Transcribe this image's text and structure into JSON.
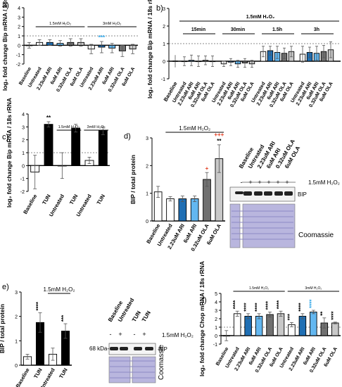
{
  "colors": {
    "untreated": "#ffffff",
    "ari": "#1f6fb4",
    "ari6": "#63b7f0",
    "ola032": "#707070",
    "ola6": "#c8c8c8",
    "sig_black": "#000000",
    "sig_blue": "#2aa3e6",
    "sig_red": "#e23b1f",
    "gel_band": "#222222",
    "coomassie": "#b9b6de"
  },
  "chart_data": [
    {
      "panel": "a)",
      "type": "bar",
      "ylabel": "log2 fold change Bip mRNA / 18s rRNA",
      "ylim": [
        -2,
        4
      ],
      "yticks": [
        -2,
        -1,
        0,
        1,
        2,
        3,
        4
      ],
      "reference_line": 1,
      "categories": [
        "Baseline",
        "Untreated",
        "2.23uM ARI",
        "6uM ARI",
        "0.32uM OLA",
        "6uM OLA",
        "Untreated",
        "2.23uM ARI",
        "6uM ARI",
        "0.32uM OLA",
        "6uM OLA"
      ],
      "values": [
        0.0,
        0.3,
        0.3,
        0.2,
        0.3,
        0.3,
        -0.4,
        -0.2,
        -0.3,
        -0.6,
        -0.4
      ],
      "errors": [
        0.3,
        0.3,
        0.3,
        0.3,
        0.4,
        0.4,
        0.5,
        0.6,
        0.5,
        0.6,
        0.5
      ],
      "colorkeys": [
        "untreated",
        "untreated",
        "ari",
        "ari6",
        "ola032",
        "ola6",
        "untreated",
        "ari",
        "ari6",
        "ola032",
        "ola6"
      ],
      "groups": [
        {
          "label": "1.5mM H2O2",
          "from": 1,
          "to": 5
        },
        {
          "label": "3mM H2O2",
          "from": 6,
          "to": 10
        }
      ],
      "sig": [
        {
          "index": 7,
          "text": "***",
          "color": "sig_blue"
        }
      ]
    },
    {
      "panel": "b)",
      "type": "bar",
      "ylabel": "log2 fold change Bip mRNA / 18s rRNA",
      "ylim": [
        -1,
        3
      ],
      "yticks": [
        -1,
        0,
        1,
        2,
        3
      ],
      "reference_line": 1,
      "title": "1.5mM H2O2",
      "categories": [
        "Baseline",
        "Untreated",
        "2.23uM ARI",
        "6uM ARI",
        "0.32uM OLA",
        "6uM OLA"
      ],
      "timepoints": [
        {
          "label": "15min",
          "values": [
            0.0,
            0.05,
            0.0,
            0.05,
            0.0
          ],
          "errors": [
            0.25,
            0.3,
            0.3,
            0.25,
            0.3
          ]
        },
        {
          "label": "30min",
          "values": [
            -0.15,
            -0.05,
            -0.15,
            -0.1,
            -0.15
          ],
          "errors": [
            0.15,
            0.2,
            0.2,
            0.25,
            0.2
          ]
        },
        {
          "label": "1.5h",
          "values": [
            0.55,
            0.6,
            0.5,
            0.45,
            0.55
          ],
          "errors": [
            0.3,
            0.25,
            0.35,
            0.3,
            0.3
          ]
        },
        {
          "label": "3h",
          "values": [
            0.4,
            0.5,
            0.45,
            0.55,
            0.65
          ],
          "errors": [
            0.45,
            0.3,
            0.4,
            0.35,
            0.45
          ]
        }
      ],
      "baseline": {
        "value": 0.0,
        "error": 0.35
      }
    },
    {
      "panel": "c)",
      "type": "bar",
      "ylabel": "log2 fold change Bip mRNA / 18s rRNA",
      "ylim": [
        -2,
        4
      ],
      "yticks": [
        -2,
        -1,
        0,
        1,
        2,
        3,
        4
      ],
      "reference_line": 1,
      "categories": [
        "Baseline",
        "TUN",
        "Untreated",
        "TUN",
        "Untreated",
        "TUN"
      ],
      "values": [
        -0.5,
        3.2,
        0.0,
        2.9,
        0.4,
        2.7
      ],
      "errors": [
        1.3,
        0.2,
        1.0,
        0.3,
        0.25,
        0.3
      ],
      "colorkeys": [
        "untreated",
        "sig_black",
        "untreated",
        "sig_black",
        "untreated",
        "sig_black"
      ],
      "groups": [
        {
          "label": "1.5mM H2O2",
          "from": 2,
          "to": 3
        },
        {
          "label": "3mM H2O2",
          "from": 4,
          "to": 5
        }
      ],
      "sig": [
        {
          "index": 1,
          "text": "**",
          "color": "sig_black"
        }
      ]
    },
    {
      "panel": "d)",
      "type": "bar",
      "ylabel": "BIP / total protein",
      "ylim": [
        0,
        3
      ],
      "yticks": [
        0,
        1,
        2,
        3
      ],
      "categories": [
        "Baseline",
        "Untreated",
        "2.23uM ARI",
        "6uM ARI",
        "0.32uM OLA",
        "6uM OLA"
      ],
      "values": [
        1.05,
        0.8,
        0.8,
        0.8,
        1.5,
        2.25
      ],
      "errors": [
        0.2,
        0.08,
        0.1,
        0.1,
        0.25,
        0.5
      ],
      "colorkeys": [
        "untreated",
        "untreated",
        "ari",
        "ari6",
        "ola032",
        "ola6"
      ],
      "groups": [
        {
          "label": "1.5mM H2O2",
          "from": 1,
          "to": 5
        }
      ],
      "sig": [
        {
          "index": 4,
          "text": "+",
          "color": "sig_red"
        },
        {
          "index": 5,
          "text": "**",
          "color": "sig_black"
        },
        {
          "index": 5,
          "text": "+++",
          "color": "sig_red"
        }
      ]
    },
    {
      "panel": "e)",
      "type": "bar",
      "ylabel": "BIP / total protein",
      "ylim": [
        0,
        3
      ],
      "yticks": [
        0,
        1,
        2,
        3
      ],
      "categories": [
        "Baseline",
        "TUN",
        "Untreated",
        "TUN"
      ],
      "values": [
        0.35,
        1.75,
        0.45,
        1.4
      ],
      "errors": [
        0.1,
        0.4,
        0.25,
        0.3
      ],
      "colorkeys": [
        "untreated",
        "sig_black",
        "untreated",
        "sig_black"
      ],
      "groups": [
        {
          "label": "1.5mM H2O2",
          "from": 2,
          "to": 3
        }
      ],
      "sig": [
        {
          "index": 1,
          "text": "****",
          "color": "sig_black"
        },
        {
          "index": 3,
          "text": "***",
          "color": "sig_black"
        }
      ]
    },
    {
      "panel": "f)",
      "type": "bar",
      "ylabel": "log2 fold change Chop mRNA / 18s rRNA",
      "ylim": [
        -1,
        5
      ],
      "yticks": [
        -1,
        0,
        1,
        2,
        3,
        4,
        5
      ],
      "reference_line": 1,
      "categories": [
        "Baseline",
        "Untreated",
        "2.23uM ARI",
        "6uM ARI",
        "0.32uM OLA",
        "6uM OLA",
        "Untreated",
        "2.23uM ARI",
        "6uM ARI",
        "0.32uM OLA",
        "6uM OLA"
      ],
      "values": [
        0.0,
        2.6,
        2.3,
        2.3,
        2.5,
        2.6,
        1.3,
        2.3,
        2.8,
        1.5,
        1.5
      ],
      "errors": [
        0.6,
        0.3,
        0.3,
        0.3,
        0.3,
        0.3,
        0.25,
        0.3,
        0.2,
        0.6,
        0.1
      ],
      "colorkeys": [
        "untreated",
        "untreated",
        "ari",
        "ari6",
        "ola032",
        "ola6",
        "untreated",
        "ari",
        "ari6",
        "ola032",
        "ola6"
      ],
      "groups": [
        {
          "label": "1.5mM H2O2",
          "from": 1,
          "to": 5
        },
        {
          "label": "3mM H2O2",
          "from": 6,
          "to": 10
        }
      ],
      "sig": [
        {
          "index": 1,
          "text": "****",
          "color": "sig_black"
        },
        {
          "index": 2,
          "text": "****",
          "color": "sig_black"
        },
        {
          "index": 3,
          "text": "****",
          "color": "sig_black"
        },
        {
          "index": 4,
          "text": "****",
          "color": "sig_black"
        },
        {
          "index": 5,
          "text": "****",
          "color": "sig_black"
        },
        {
          "index": 6,
          "text": "***",
          "color": "sig_black"
        },
        {
          "index": 7,
          "text": "****",
          "color": "sig_black"
        },
        {
          "index": 8,
          "text": "****",
          "color": "sig_blue"
        },
        {
          "index": 9,
          "text": "**",
          "color": "sig_black"
        },
        {
          "index": 10,
          "text": "****",
          "color": "sig_black"
        }
      ]
    }
  ],
  "blot_d": {
    "lanes": [
      "Baseline",
      "Untreated",
      "2.23uM ARI",
      "6uM ARI",
      "0.32uM OLA",
      "6uM OLA"
    ],
    "signs": [
      "-",
      "+",
      "+",
      "+",
      "+",
      "+"
    ],
    "treatment": "1.5mM H2O2",
    "band_label": "BIP",
    "stain_label": "Coomassie"
  },
  "blot_e": {
    "lanes": [
      "Baseline",
      "Untreated",
      "TUN",
      "TUN"
    ],
    "signs": [
      "-",
      "+",
      "-",
      "+"
    ],
    "treatment": "1.5mM H2O2",
    "marker": "68 kDa-",
    "band_label": "BIP",
    "stain_label": "Coomassie"
  }
}
